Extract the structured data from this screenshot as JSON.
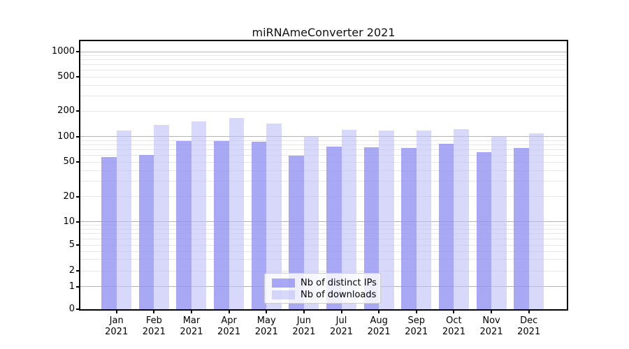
{
  "title": "miRNAmeConverter 2021",
  "legend": {
    "items": [
      {
        "label": "Nb of distinct IPs",
        "color": "rgba(146,146,243,0.8)"
      },
      {
        "label": "Nb of downloads",
        "color": "rgba(190,190,247,0.6)"
      }
    ]
  },
  "x_axis": {
    "months": [
      "Jan",
      "Feb",
      "Mar",
      "Apr",
      "May",
      "Jun",
      "Jul",
      "Aug",
      "Sep",
      "Oct",
      "Nov",
      "Dec"
    ],
    "year": "2021"
  },
  "y_axis": {
    "tick_labels": [
      "0",
      "1",
      "2",
      "5",
      "10",
      "20",
      "50",
      "100",
      "200",
      "500",
      "1000"
    ]
  },
  "chart_data": {
    "type": "bar",
    "title": "miRNAmeConverter 2021",
    "categories": [
      "Jan 2021",
      "Feb 2021",
      "Mar 2021",
      "Apr 2021",
      "May 2021",
      "Jun 2021",
      "Jul 2021",
      "Aug 2021",
      "Sep 2021",
      "Oct 2021",
      "Nov 2021",
      "Dec 2021"
    ],
    "series": [
      {
        "name": "Nb of distinct IPs",
        "color": "rgba(146,146,243,0.8)",
        "color_flat": "#a8a8f5",
        "values": [
          57,
          61,
          89,
          89,
          87,
          60,
          76,
          75,
          74,
          82,
          66,
          73
        ]
      },
      {
        "name": "Nb of downloads",
        "color": "rgba(190,190,247,0.6)",
        "color_flat": "#d8d8f8",
        "values": [
          118,
          137,
          150,
          165,
          142,
          101,
          120,
          117,
          118,
          122,
          101,
          109
        ]
      }
    ],
    "yscale": "symlog",
    "yticks": [
      0,
      1,
      2,
      5,
      10,
      20,
      50,
      100,
      200,
      500,
      1000
    ],
    "ylim": [
      0,
      1320
    ],
    "xlabel": "",
    "ylabel": "",
    "grid": "horizontal, major + log minors",
    "legend_position": "lower center"
  }
}
